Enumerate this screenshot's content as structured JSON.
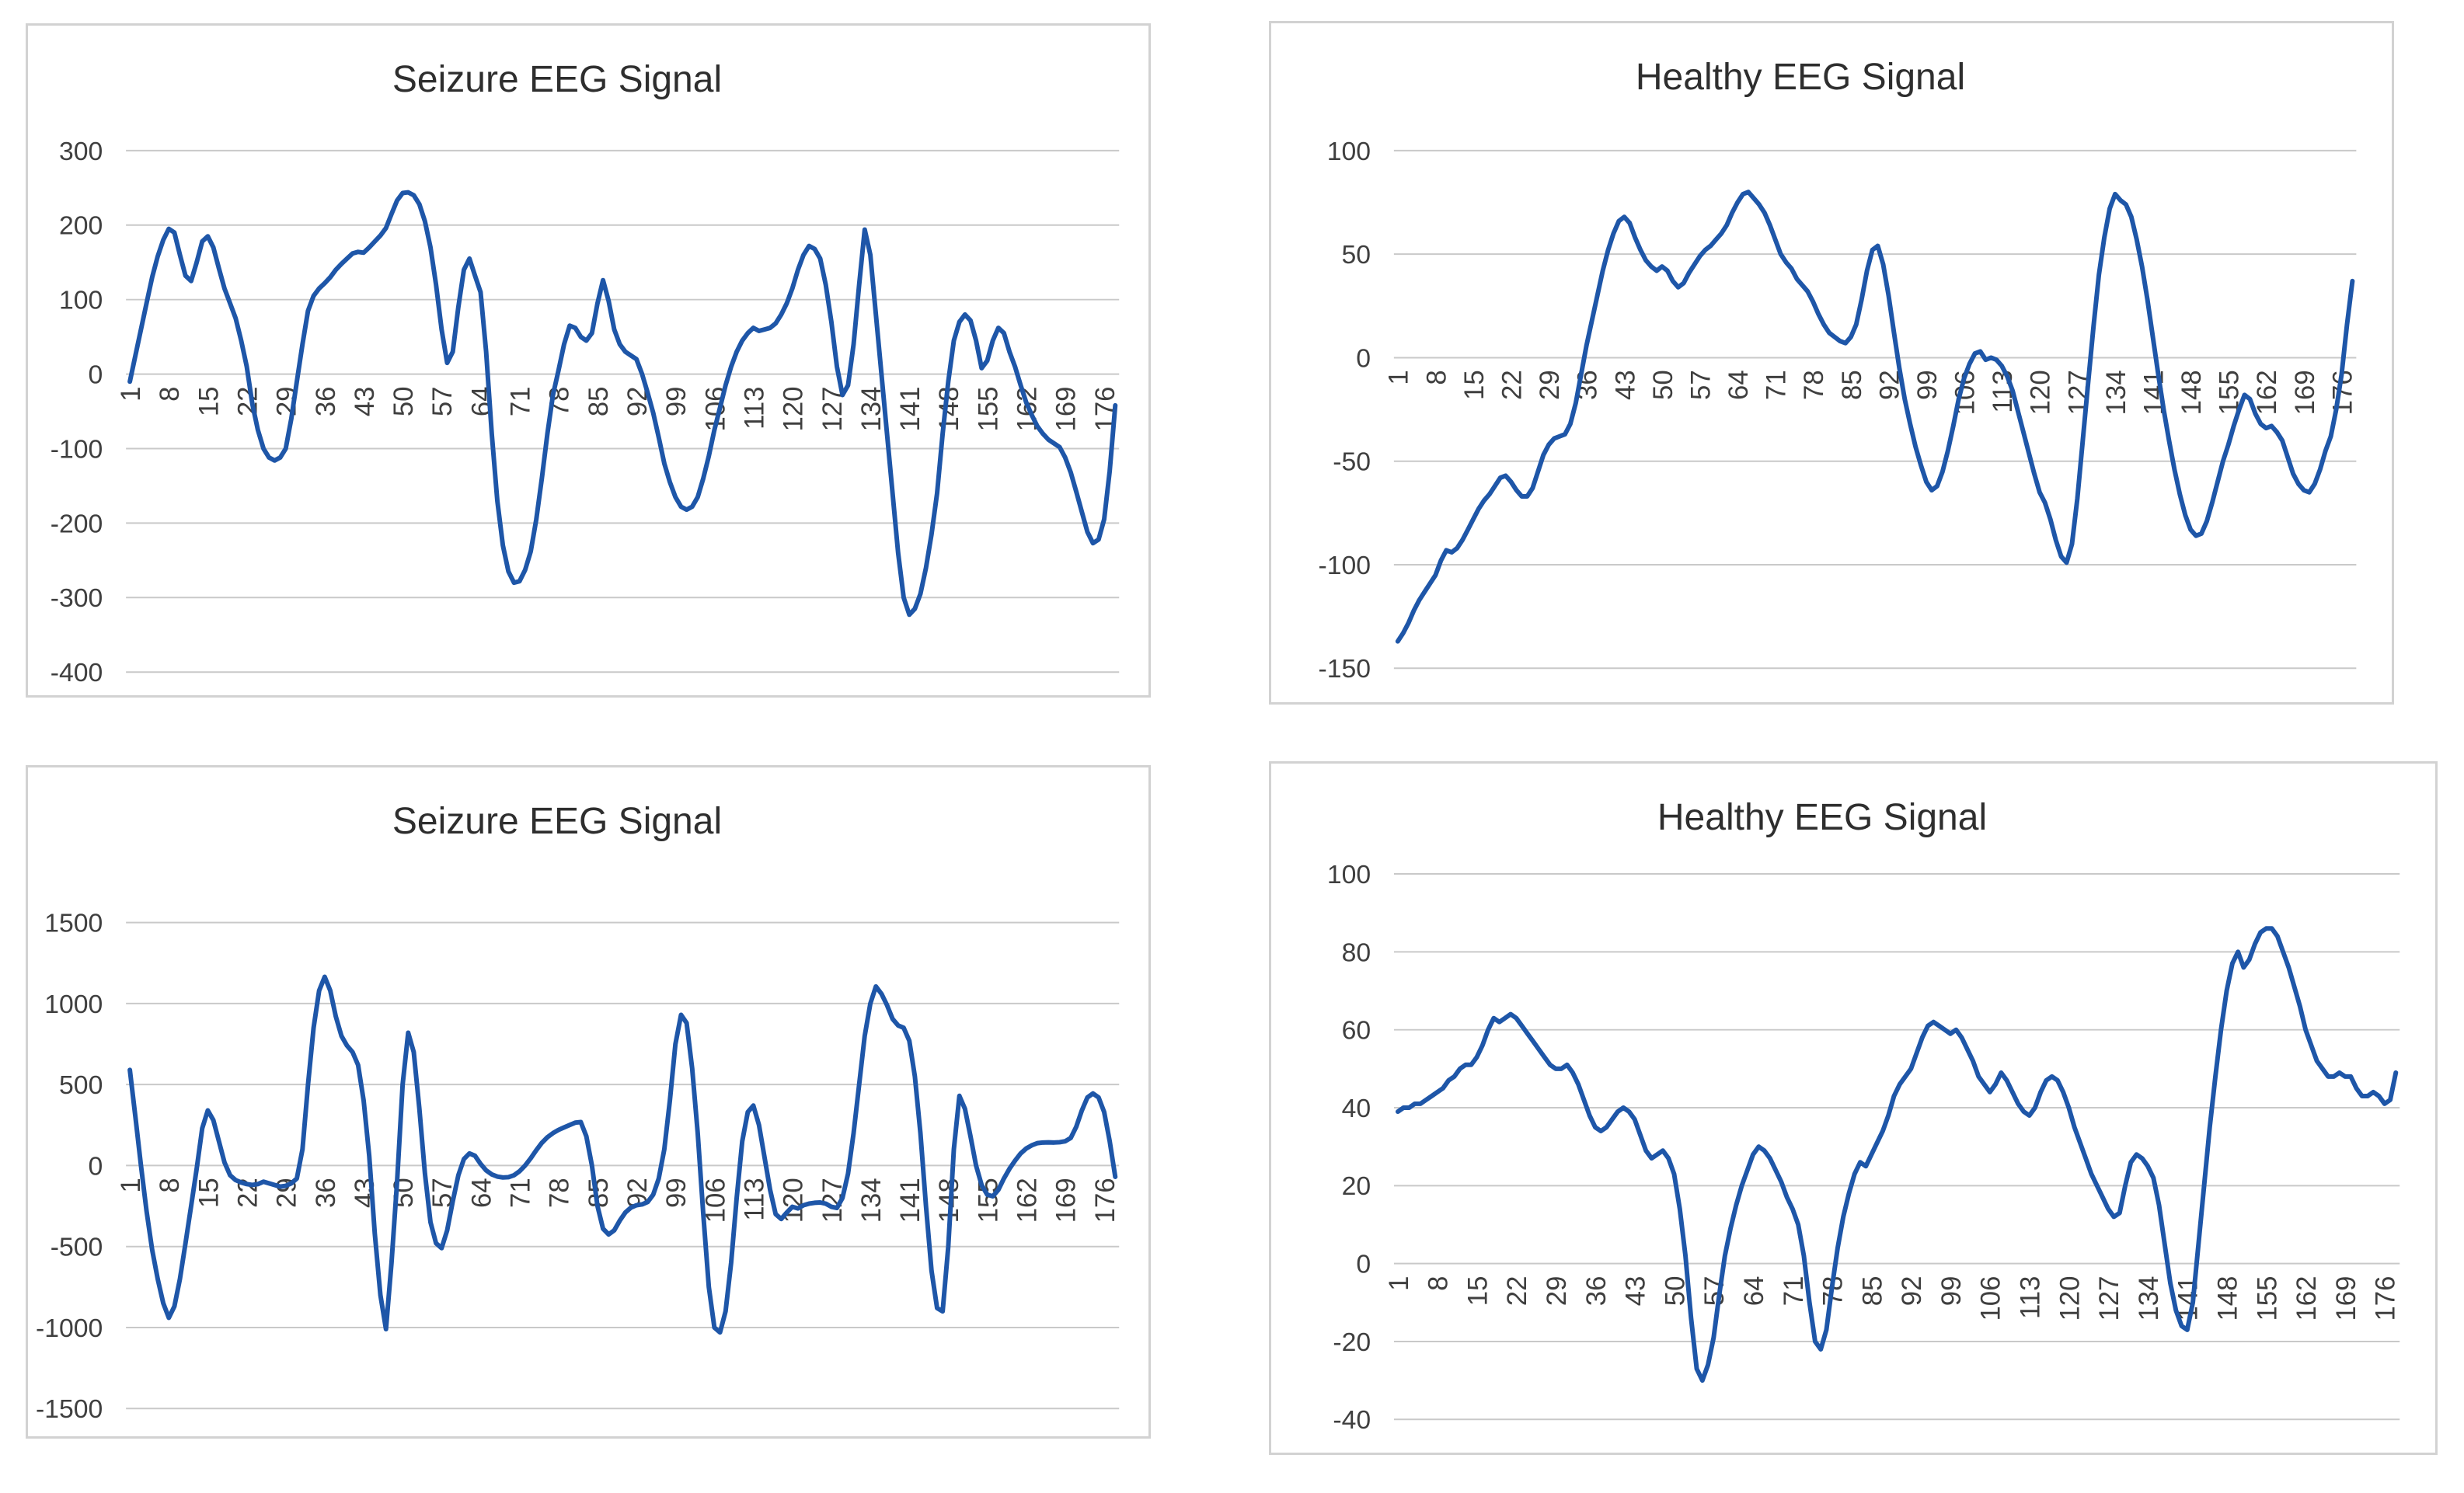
{
  "page": {
    "background": "#ffffff"
  },
  "chart_data": [
    {
      "id": "seizure-eeg-top",
      "type": "line",
      "title": "Seizure EEG Signal",
      "xlabel": "",
      "ylabel": "",
      "legend": false,
      "grid": true,
      "line_color": "#1E56A8",
      "gridline_color": "#c9c9c9",
      "text_color": "#3f3f3f",
      "ylim": [
        -400,
        300
      ],
      "y_ticks": [
        300,
        200,
        100,
        0,
        -100,
        -200,
        -300,
        -400
      ],
      "x_tick_labels": [
        "1",
        "8",
        "15",
        "22",
        "29",
        "36",
        "43",
        "50",
        "57",
        "64",
        "71",
        "78",
        "85",
        "92",
        "99",
        "106",
        "113",
        "120",
        "127",
        "134",
        "141",
        "148",
        "155",
        "162",
        "169",
        "176"
      ],
      "values": [
        -10,
        25,
        60,
        95,
        130,
        158,
        180,
        195,
        190,
        160,
        132,
        125,
        150,
        178,
        185,
        170,
        142,
        115,
        95,
        75,
        45,
        10,
        -40,
        -75,
        -100,
        -112,
        -116,
        -112,
        -100,
        -60,
        -10,
        40,
        85,
        105,
        115,
        122,
        130,
        140,
        148,
        155,
        162,
        164,
        163,
        170,
        178,
        186,
        196,
        215,
        233,
        243,
        244,
        240,
        228,
        205,
        170,
        120,
        60,
        15,
        30,
        90,
        140,
        155,
        132,
        110,
        30,
        -80,
        -170,
        -230,
        -265,
        -280,
        -278,
        -263,
        -238,
        -195,
        -140,
        -80,
        -28,
        5,
        40,
        65,
        62,
        50,
        45,
        55,
        95,
        126,
        98,
        60,
        40,
        30,
        25,
        20,
        0,
        -25,
        -52,
        -85,
        -120,
        -145,
        -165,
        -178,
        -182,
        -178,
        -165,
        -140,
        -110,
        -75,
        -45,
        -15,
        10,
        30,
        45,
        55,
        62,
        58,
        60,
        62,
        68,
        80,
        95,
        115,
        140,
        160,
        172,
        168,
        155,
        120,
        70,
        10,
        -28,
        -15,
        40,
        120,
        194,
        160,
        80,
        0,
        -80,
        -160,
        -240,
        -300,
        -323,
        -315,
        -295,
        -260,
        -215,
        -160,
        -80,
        -10,
        45,
        70,
        80,
        72,
        45,
        8,
        18,
        45,
        62,
        55,
        30,
        10,
        -15,
        -38,
        -55,
        -70,
        -80,
        -88,
        -93,
        -98,
        -112,
        -132,
        -158,
        -185,
        -212,
        -227,
        -222,
        -195,
        -130,
        -42
      ]
    },
    {
      "id": "healthy-eeg-top",
      "type": "line",
      "title": "Healthy EEG Signal",
      "xlabel": "",
      "ylabel": "",
      "legend": false,
      "grid": true,
      "line_color": "#1E56A8",
      "gridline_color": "#c9c9c9",
      "text_color": "#3f3f3f",
      "ylim": [
        -150,
        100
      ],
      "y_ticks": [
        100,
        50,
        0,
        -50,
        -100,
        -150
      ],
      "x_tick_labels": [
        "1",
        "8",
        "15",
        "22",
        "29",
        "36",
        "43",
        "50",
        "57",
        "64",
        "71",
        "78",
        "85",
        "92",
        "99",
        "106",
        "113",
        "120",
        "127",
        "134",
        "141",
        "148",
        "155",
        "162",
        "169",
        "176"
      ],
      "values": [
        -137,
        -133,
        -128,
        -122,
        -117,
        -113,
        -109,
        -105,
        -98,
        -93,
        -94,
        -92,
        -88,
        -83,
        -78,
        -73,
        -69,
        -66,
        -62,
        -58,
        -57,
        -60,
        -64,
        -67,
        -67,
        -63,
        -55,
        -47,
        -42,
        -39,
        -38,
        -37,
        -32,
        -22,
        -8,
        6,
        18,
        30,
        42,
        52,
        60,
        66,
        68,
        65,
        58,
        52,
        47,
        44,
        42,
        44,
        42,
        37,
        34,
        36,
        41,
        45,
        49,
        52,
        54,
        57,
        60,
        64,
        70,
        75,
        79,
        80,
        77,
        74,
        70,
        64,
        57,
        50,
        46,
        43,
        38,
        35,
        32,
        27,
        21,
        16,
        12,
        10,
        8,
        7,
        10,
        16,
        28,
        42,
        52,
        54,
        45,
        30,
        12,
        -5,
        -20,
        -32,
        -43,
        -52,
        -60,
        -64,
        -62,
        -55,
        -45,
        -33,
        -20,
        -10,
        -3,
        2,
        3,
        -1,
        0,
        -1,
        -4,
        -9,
        -16,
        -26,
        -36,
        -46,
        -56,
        -65,
        -70,
        -78,
        -88,
        -96,
        -99,
        -90,
        -68,
        -40,
        -12,
        15,
        40,
        58,
        72,
        79,
        76,
        74,
        68,
        57,
        44,
        28,
        10,
        -8,
        -25,
        -40,
        -54,
        -66,
        -76,
        -83,
        -86,
        -85,
        -79,
        -70,
        -60,
        -50,
        -42,
        -33,
        -25,
        -18,
        -20,
        -27,
        -32,
        -34,
        -33,
        -36,
        -40,
        -48,
        -56,
        -61,
        -64,
        -65,
        -61,
        -54,
        -45,
        -38,
        -25,
        -8,
        16,
        37
      ]
    },
    {
      "id": "seizure-eeg-bottom",
      "type": "line",
      "title": "Seizure EEG Signal",
      "xlabel": "",
      "ylabel": "",
      "legend": false,
      "grid": true,
      "line_color": "#1E56A8",
      "gridline_color": "#c9c9c9",
      "text_color": "#3f3f3f",
      "ylim": [
        -1500,
        1500
      ],
      "y_ticks": [
        1500,
        1000,
        500,
        0,
        -500,
        -1000,
        -1500
      ],
      "x_tick_labels": [
        "1",
        "8",
        "15",
        "22",
        "29",
        "36",
        "43",
        "50",
        "57",
        "64",
        "71",
        "78",
        "85",
        "92",
        "99",
        "106",
        "113",
        "120",
        "127",
        "134",
        "141",
        "148",
        "155",
        "162",
        "169",
        "176"
      ],
      "values": [
        590,
        300,
        0,
        -280,
        -520,
        -700,
        -850,
        -940,
        -870,
        -700,
        -480,
        -250,
        -20,
        230,
        340,
        280,
        150,
        20,
        -60,
        -90,
        -105,
        -115,
        -120,
        -115,
        -100,
        -110,
        -120,
        -130,
        -125,
        -110,
        -80,
        100,
        500,
        850,
        1080,
        1165,
        1080,
        920,
        800,
        740,
        700,
        620,
        400,
        60,
        -420,
        -800,
        -1010,
        -600,
        -100,
        500,
        820,
        700,
        350,
        -50,
        -350,
        -480,
        -510,
        -400,
        -220,
        -60,
        40,
        75,
        60,
        10,
        -30,
        -55,
        -68,
        -74,
        -72,
        -60,
        -35,
        0,
        45,
        95,
        140,
        175,
        200,
        220,
        235,
        250,
        265,
        268,
        180,
        0,
        -250,
        -390,
        -425,
        -400,
        -340,
        -290,
        -260,
        -245,
        -240,
        -225,
        -180,
        -80,
        100,
        400,
        750,
        930,
        880,
        600,
        200,
        -300,
        -750,
        -1000,
        -1030,
        -900,
        -600,
        -200,
        150,
        330,
        370,
        250,
        50,
        -150,
        -300,
        -330,
        -290,
        -255,
        -265,
        -245,
        -235,
        -230,
        -228,
        -235,
        -255,
        -262,
        -200,
        -50,
        200,
        500,
        800,
        1000,
        1105,
        1060,
        990,
        905,
        865,
        850,
        770,
        550,
        200,
        -250,
        -650,
        -880,
        -900,
        -500,
        100,
        430,
        350,
        180,
        0,
        -120,
        -180,
        -190,
        -150,
        -80,
        -20,
        30,
        75,
        105,
        125,
        138,
        142,
        143,
        142,
        144,
        150,
        170,
        240,
        340,
        420,
        445,
        420,
        330,
        150,
        -70
      ]
    },
    {
      "id": "healthy-eeg-bottom",
      "type": "line",
      "title": "Healthy EEG Signal",
      "xlabel": "",
      "ylabel": "",
      "legend": false,
      "grid": true,
      "line_color": "#1E56A8",
      "gridline_color": "#c9c9c9",
      "text_color": "#3f3f3f",
      "ylim": [
        -40,
        100
      ],
      "y_ticks": [
        100,
        80,
        60,
        40,
        20,
        0,
        -20,
        -40
      ],
      "x_tick_labels": [
        "1",
        "8",
        "15",
        "22",
        "29",
        "36",
        "43",
        "50",
        "57",
        "64",
        "71",
        "78",
        "85",
        "92",
        "99",
        "106",
        "113",
        "120",
        "127",
        "134",
        "141",
        "148",
        "155",
        "162",
        "169",
        "176"
      ],
      "values": [
        39,
        40,
        40,
        41,
        41,
        42,
        43,
        44,
        45,
        47,
        48,
        50,
        51,
        51,
        53,
        56,
        60,
        63,
        62,
        63,
        64,
        63,
        61,
        59,
        57,
        55,
        53,
        51,
        50,
        50,
        51,
        49,
        46,
        42,
        38,
        35,
        34,
        35,
        37,
        39,
        40,
        39,
        37,
        33,
        29,
        27,
        28,
        29,
        27,
        23,
        14,
        2,
        -14,
        -27,
        -30,
        -26,
        -19,
        -8,
        2,
        9,
        15,
        20,
        24,
        28,
        30,
        29,
        27,
        24,
        21,
        17,
        14,
        10,
        2,
        -10,
        -20,
        -22,
        -17,
        -6,
        4,
        12,
        18,
        23,
        26,
        25,
        28,
        31,
        34,
        38,
        43,
        46,
        48,
        50,
        54,
        58,
        61,
        62,
        61,
        60,
        59,
        60,
        58,
        55,
        52,
        48,
        46,
        44,
        46,
        49,
        47,
        44,
        41,
        39,
        38,
        40,
        44,
        47,
        48,
        47,
        44,
        40,
        35,
        31,
        27,
        23,
        20,
        17,
        14,
        12,
        13,
        20,
        26,
        28,
        27,
        25,
        22,
        15,
        5,
        -5,
        -12,
        -16,
        -17,
        -10,
        5,
        20,
        35,
        48,
        60,
        70,
        77,
        80,
        76,
        78,
        82,
        85,
        86,
        86,
        84,
        80,
        76,
        71,
        66,
        60,
        56,
        52,
        50,
        48,
        48,
        49,
        48,
        48,
        45,
        43,
        43,
        44,
        43,
        41,
        42,
        49
      ]
    }
  ]
}
